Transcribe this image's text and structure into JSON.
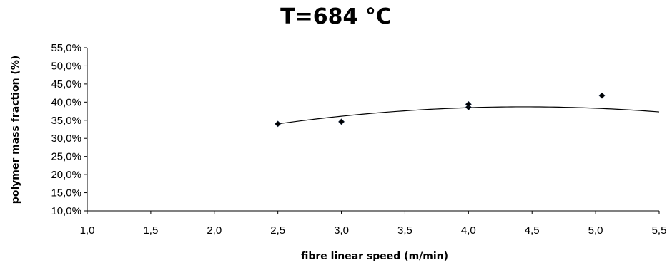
{
  "chart_data": {
    "type": "scatter",
    "title": "T=684 °C",
    "xlabel": "fibre linear speed (m/min)",
    "ylabel": "polymer mass fraction (%)",
    "xlim": [
      1.0,
      5.5
    ],
    "ylim": [
      10.0,
      55.0
    ],
    "x_ticks": [
      "1,0",
      "1,5",
      "2,0",
      "2,5",
      "3,0",
      "3,5",
      "4,0",
      "4,5",
      "5,0",
      "5,5"
    ],
    "y_ticks": [
      "10,0%",
      "15,0%",
      "20,0%",
      "25,0%",
      "30,0%",
      "35,0%",
      "40,0%",
      "45,0%",
      "50,0%",
      "55,0%"
    ],
    "grid": false,
    "series": [
      {
        "marker": "diamond",
        "color": "#000000",
        "points": [
          {
            "x": 2.5,
            "y": 34.0
          },
          {
            "x": 3.0,
            "y": 34.6
          },
          {
            "x": 4.0,
            "y": 38.6
          },
          {
            "x": 4.0,
            "y": 39.4
          },
          {
            "x": 5.05,
            "y": 41.8
          }
        ]
      }
    ],
    "trendline": {
      "type": "polynomial-2",
      "color": "#000000",
      "x_range": [
        2.5,
        5.5
      ],
      "points": [
        {
          "x": 2.5,
          "y": 34.0
        },
        {
          "x": 4.5,
          "y": 38.7
        },
        {
          "x": 5.5,
          "y": 37.3
        }
      ]
    }
  }
}
